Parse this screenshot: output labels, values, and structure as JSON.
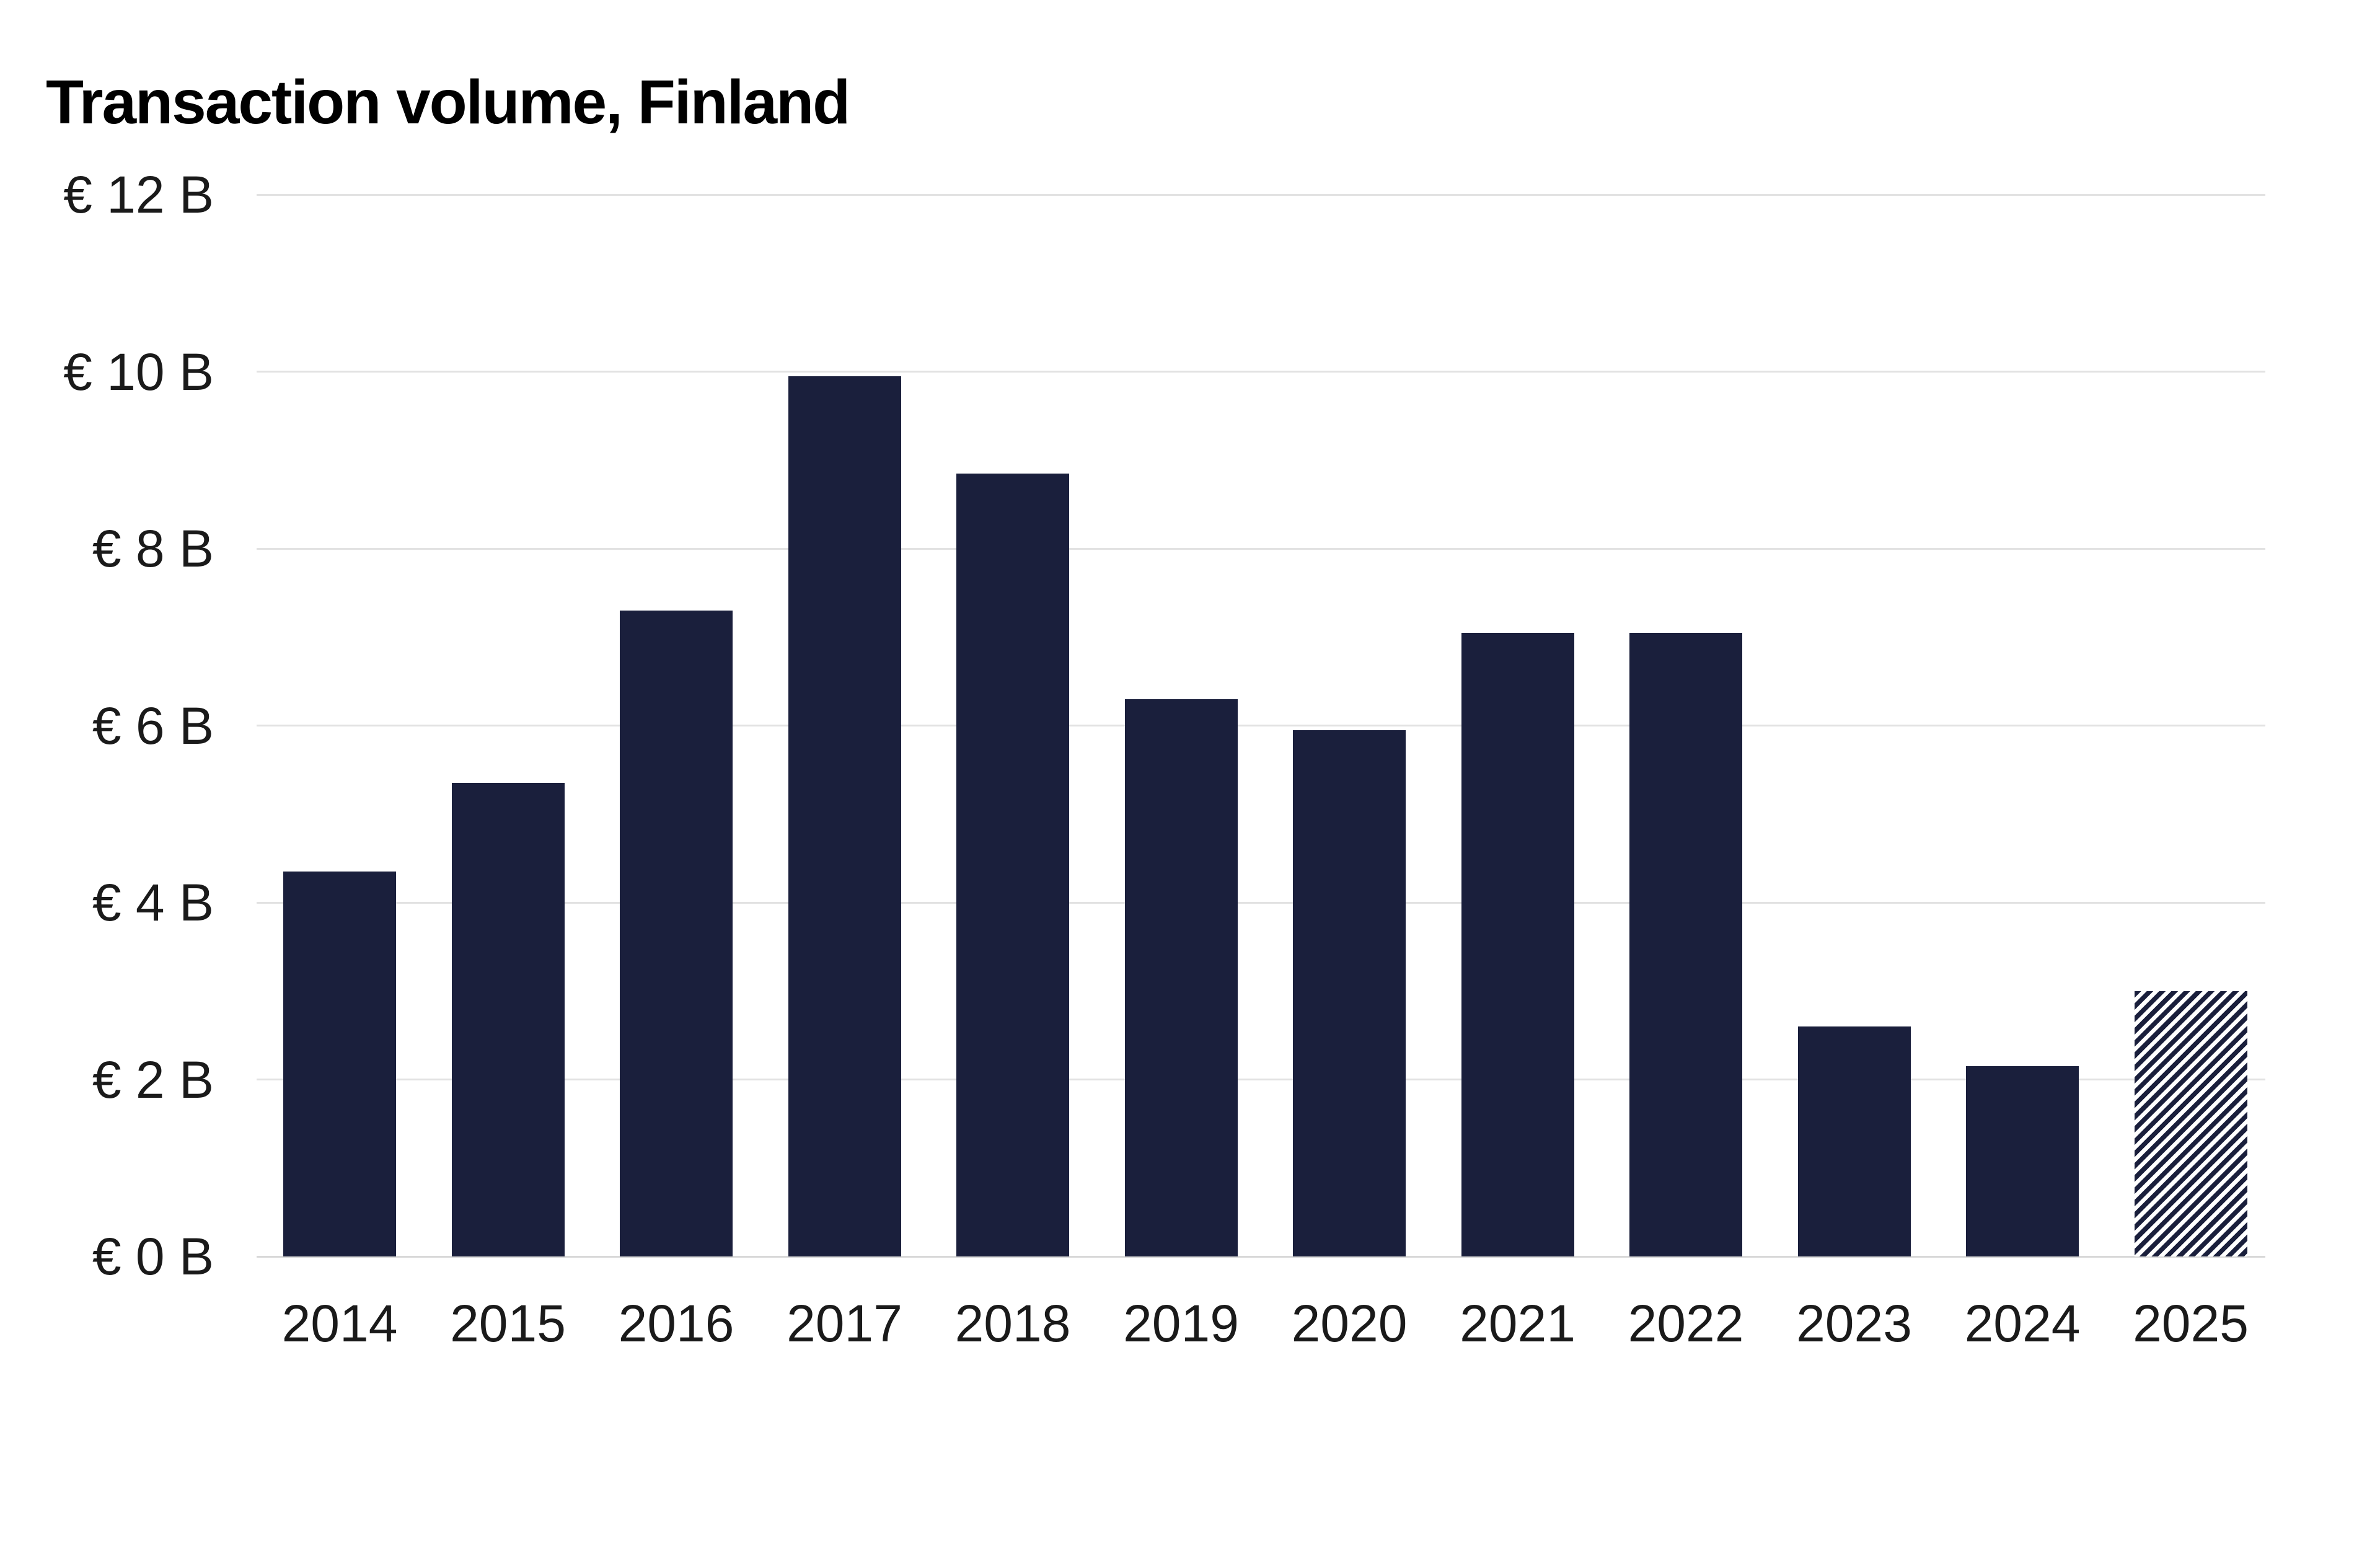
{
  "title": "Transaction volume, Finland",
  "chart_data": {
    "type": "bar",
    "title": "Transaction volume, Finland",
    "unit": "EUR billions",
    "categories": [
      "2014",
      "2015",
      "2016",
      "2017",
      "2018",
      "2019",
      "2020",
      "2021",
      "2022",
      "2023",
      "2024",
      "2025"
    ],
    "values": [
      4.35,
      5.35,
      7.3,
      9.95,
      8.85,
      6.3,
      5.95,
      7.05,
      7.05,
      2.6,
      2.15,
      3.0
    ],
    "points": [
      {
        "category": "2014",
        "value": 4.35,
        "pattern": "solid"
      },
      {
        "category": "2015",
        "value": 5.35,
        "pattern": "solid"
      },
      {
        "category": "2016",
        "value": 7.3,
        "pattern": "solid"
      },
      {
        "category": "2017",
        "value": 9.95,
        "pattern": "solid"
      },
      {
        "category": "2018",
        "value": 8.85,
        "pattern": "solid"
      },
      {
        "category": "2019",
        "value": 6.3,
        "pattern": "solid"
      },
      {
        "category": "2020",
        "value": 5.95,
        "pattern": "solid"
      },
      {
        "category": "2021",
        "value": 7.05,
        "pattern": "solid"
      },
      {
        "category": "2022",
        "value": 7.05,
        "pattern": "solid"
      },
      {
        "category": "2023",
        "value": 2.6,
        "pattern": "solid"
      },
      {
        "category": "2024",
        "value": 2.15,
        "pattern": "solid"
      },
      {
        "category": "2025",
        "value": 3.0,
        "pattern": "hatched"
      }
    ],
    "y_ticks": [
      {
        "value": 0,
        "label": "€ 0 B"
      },
      {
        "value": 2,
        "label": "€ 2 B"
      },
      {
        "value": 4,
        "label": "€ 4 B"
      },
      {
        "value": 6,
        "label": "€ 6 B"
      },
      {
        "value": 8,
        "label": "€ 8 B"
      },
      {
        "value": 10,
        "label": "€ 10 B"
      },
      {
        "value": 12,
        "label": "€ 12 B"
      }
    ],
    "ylim": [
      0,
      12
    ],
    "xlabel": "",
    "ylabel": "",
    "grid": "horizontal",
    "legend": "none",
    "hatched_note": "2025 bar rendered with diagonal hatching (forecast)",
    "colors": {
      "bar": "#1a1f3c",
      "hatch_bg": "#ffffff",
      "gridline": "#e2e2e2",
      "axis_line": "#d8d8d8",
      "text": "#1a1a1a",
      "title": "#000000"
    }
  }
}
